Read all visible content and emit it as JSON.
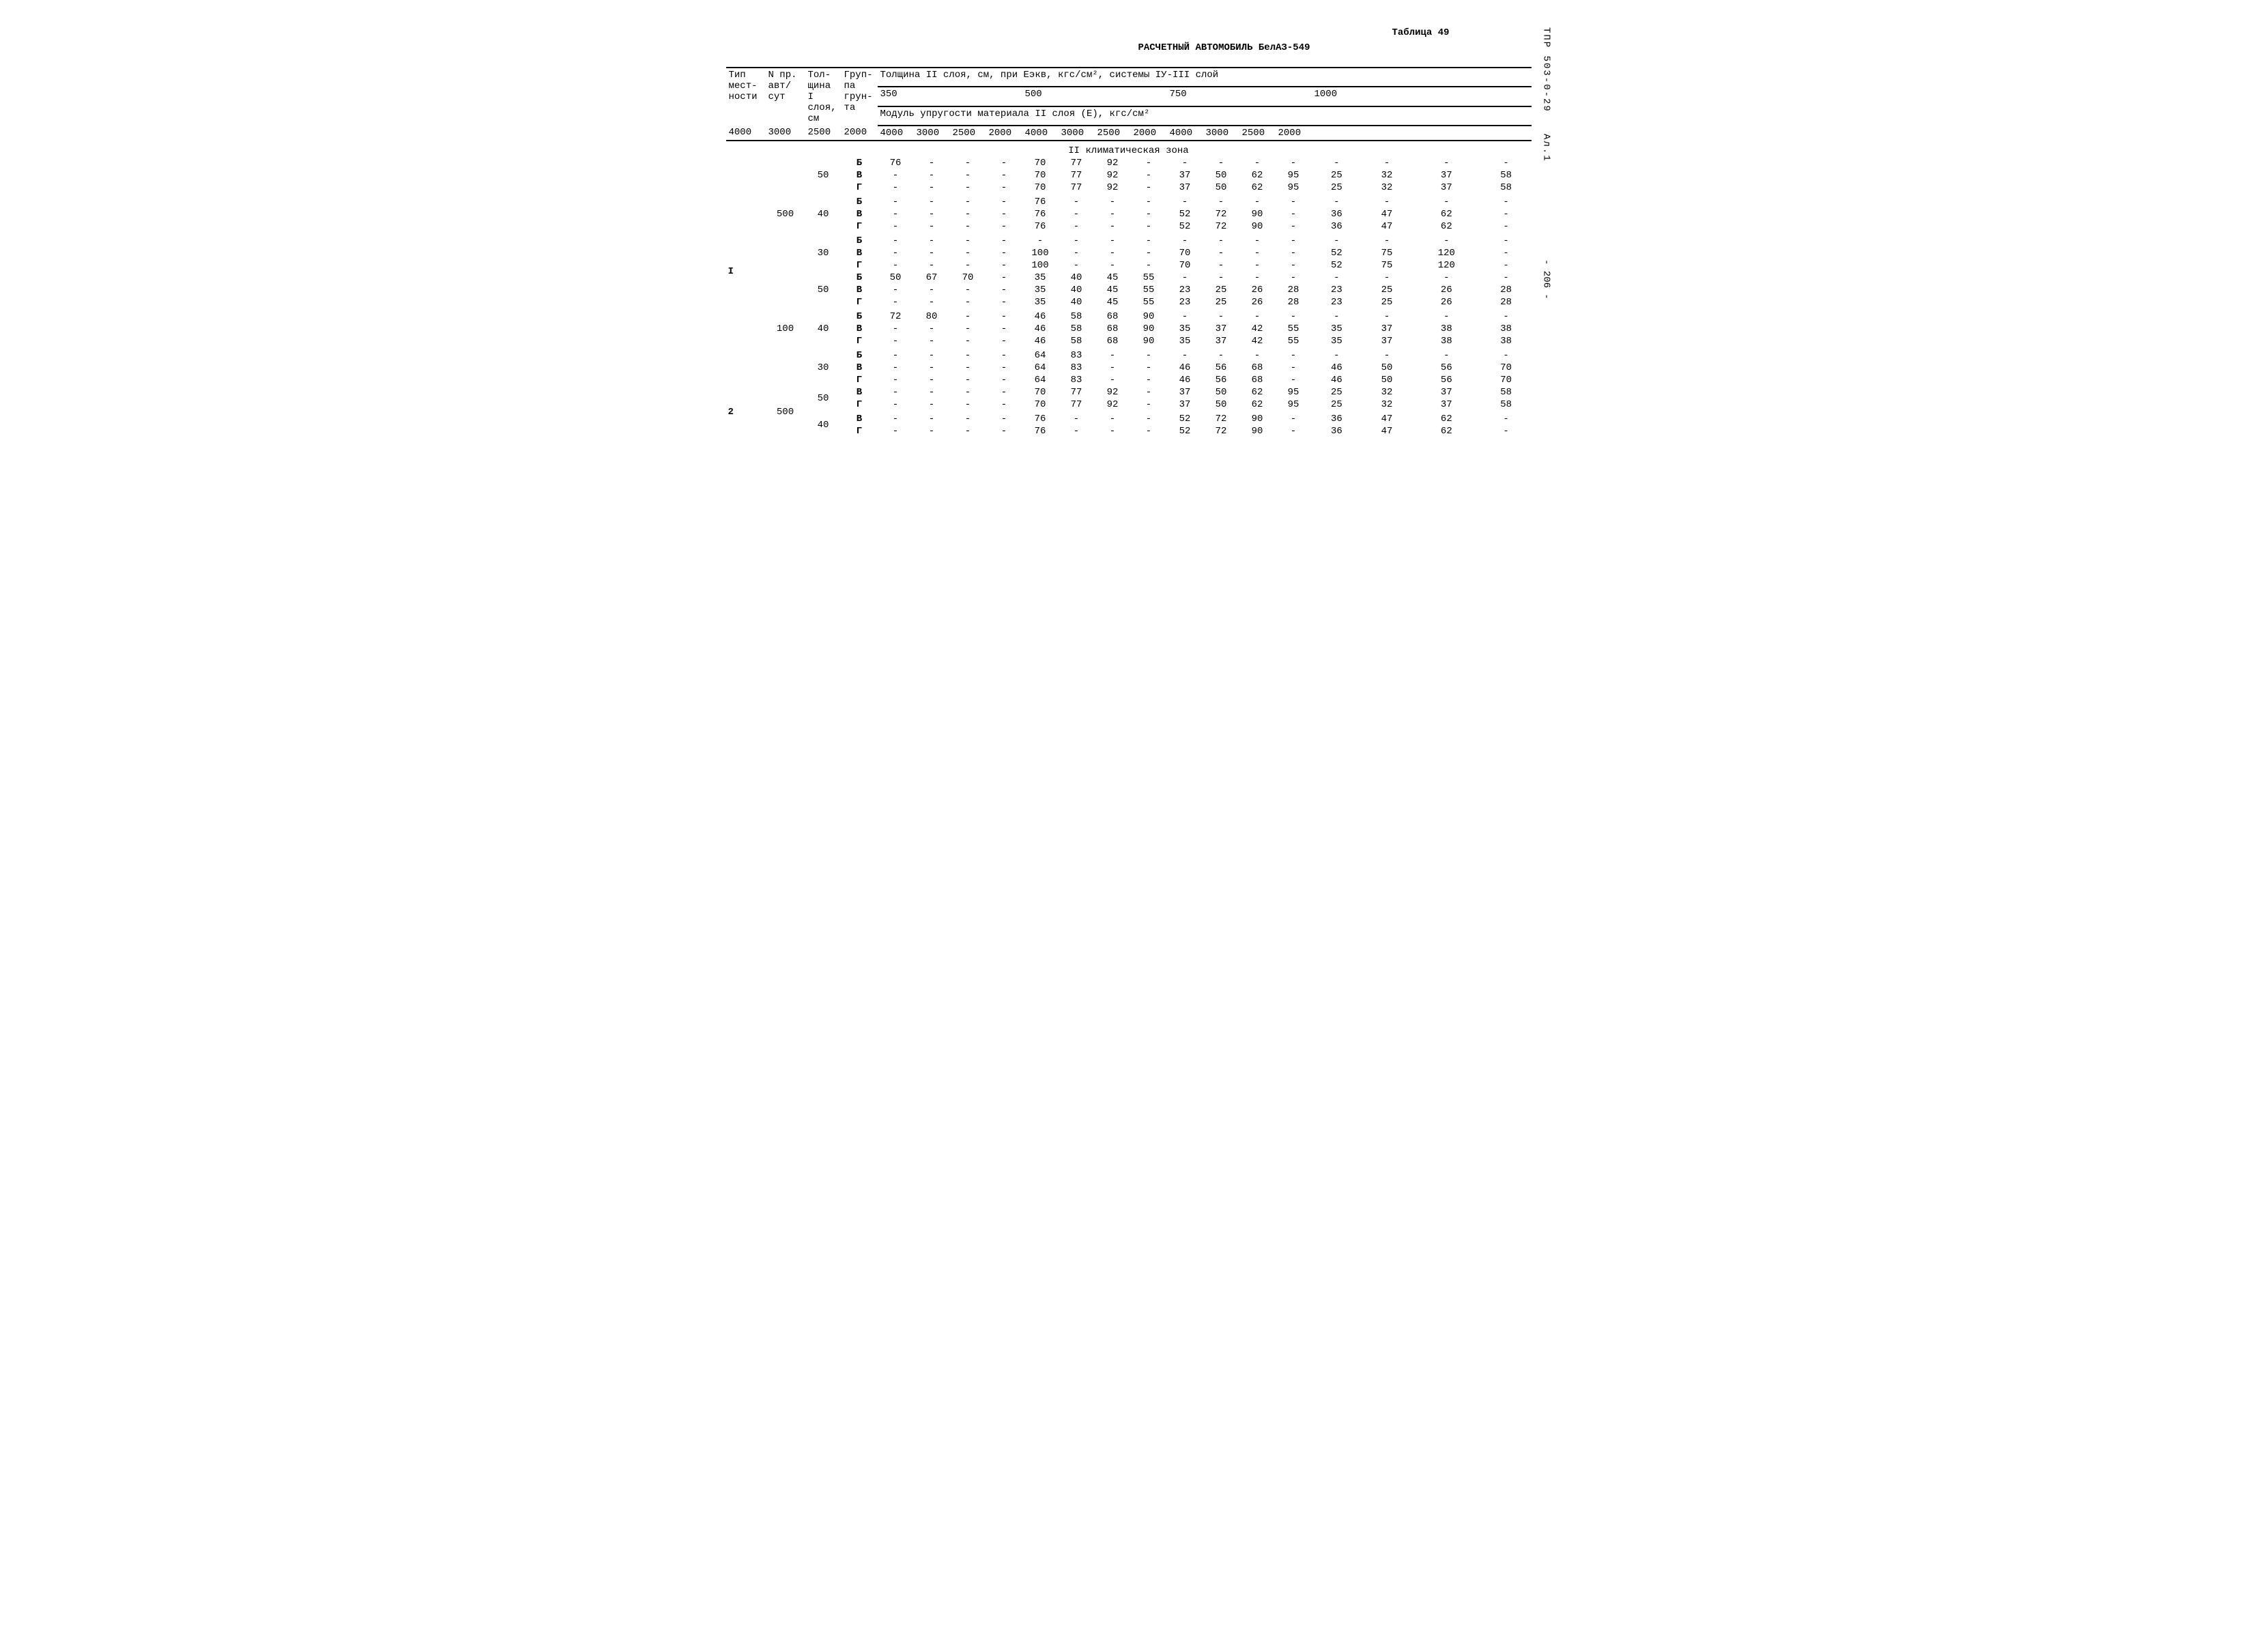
{
  "labels": {
    "table_no": "Таблица 49",
    "title": "РАСЧЕТНЫЙ АВТОМОБИЛЬ БелАЗ-549",
    "side_doc": "ТПР 503-0-29",
    "side_alt": "Ал.1",
    "side_page": "- 206 -",
    "hdr_type": "Тип\nмест-\nности",
    "hdr_avt": "N пр.\nавт/\nсут",
    "hdr_tol": "Тол-\nщина\nI\nслоя,\nсм",
    "hdr_grp": "Груп-\nпа\nгрун-\nта",
    "hdr_main": "Толщина II слоя, см, при Еэкв, кгс/см², системы IУ-III слой",
    "hdr_sub": "Модуль упругости материала II слоя (Е), кгс/см²",
    "zone": "II климатическая зона"
  },
  "eekv": [
    "350",
    "500",
    "750",
    "1000"
  ],
  "modulus": [
    "4000",
    "3000",
    "2500",
    "2000",
    "4000",
    "3000",
    "2500",
    "2000",
    "4000",
    "3000",
    "2500",
    "2000",
    "4000",
    "3000",
    "2500",
    "2000"
  ],
  "blocks": [
    {
      "type": "I",
      "avt_groups": [
        {
          "avt": "500",
          "thick_groups": [
            {
              "tol": "50",
              "rows": [
                {
                  "g": "Б",
                  "v": [
                    "76",
                    "-",
                    "-",
                    "-",
                    "70",
                    "77",
                    "92",
                    "-",
                    "-",
                    "-",
                    "-",
                    "-",
                    "-",
                    "-",
                    "-",
                    "-"
                  ]
                },
                {
                  "g": "В",
                  "v": [
                    "-",
                    "-",
                    "-",
                    "-",
                    "70",
                    "77",
                    "92",
                    "-",
                    "37",
                    "50",
                    "62",
                    "95",
                    "25",
                    "32",
                    "37",
                    "58"
                  ]
                },
                {
                  "g": "Г",
                  "v": [
                    "-",
                    "-",
                    "-",
                    "-",
                    "70",
                    "77",
                    "92",
                    "-",
                    "37",
                    "50",
                    "62",
                    "95",
                    "25",
                    "32",
                    "37",
                    "58"
                  ]
                }
              ]
            },
            {
              "tol": "40",
              "rows": [
                {
                  "g": "Б",
                  "v": [
                    "-",
                    "-",
                    "-",
                    "-",
                    "76",
                    "-",
                    "-",
                    "-",
                    "-",
                    "-",
                    "-",
                    "-",
                    "-",
                    "-",
                    "-",
                    "-"
                  ]
                },
                {
                  "g": "В",
                  "v": [
                    "-",
                    "-",
                    "-",
                    "-",
                    "76",
                    "-",
                    "-",
                    "-",
                    "52",
                    "72",
                    "90",
                    "-",
                    "36",
                    "47",
                    "62",
                    "-"
                  ]
                },
                {
                  "g": "Г",
                  "v": [
                    "-",
                    "-",
                    "-",
                    "-",
                    "76",
                    "-",
                    "-",
                    "-",
                    "52",
                    "72",
                    "90",
                    "-",
                    "36",
                    "47",
                    "62",
                    "-"
                  ]
                }
              ]
            },
            {
              "tol": "30",
              "rows": [
                {
                  "g": "Б",
                  "v": [
                    "-",
                    "-",
                    "-",
                    "-",
                    "-",
                    "-",
                    "-",
                    "-",
                    "-",
                    "-",
                    "-",
                    "-",
                    "-",
                    "-",
                    "-",
                    "-"
                  ]
                },
                {
                  "g": "В",
                  "v": [
                    "-",
                    "-",
                    "-",
                    "-",
                    "100",
                    "-",
                    "-",
                    "-",
                    "70",
                    "-",
                    "-",
                    "-",
                    "52",
                    "75",
                    "120",
                    "-"
                  ]
                },
                {
                  "g": "Г",
                  "v": [
                    "-",
                    "-",
                    "-",
                    "-",
                    "100",
                    "-",
                    "-",
                    "-",
                    "70",
                    "-",
                    "-",
                    "-",
                    "52",
                    "75",
                    "120",
                    "-"
                  ]
                }
              ]
            }
          ]
        },
        {
          "avt": "100",
          "thick_groups": [
            {
              "tol": "50",
              "rows": [
                {
                  "g": "Б",
                  "v": [
                    "50",
                    "67",
                    "70",
                    "-",
                    "35",
                    "40",
                    "45",
                    "55",
                    "-",
                    "-",
                    "-",
                    "-",
                    "-",
                    "-",
                    "-",
                    "-"
                  ]
                },
                {
                  "g": "В",
                  "v": [
                    "-",
                    "-",
                    "-",
                    "-",
                    "35",
                    "40",
                    "45",
                    "55",
                    "23",
                    "25",
                    "26",
                    "28",
                    "23",
                    "25",
                    "26",
                    "28"
                  ]
                },
                {
                  "g": "Г",
                  "v": [
                    "-",
                    "-",
                    "-",
                    "-",
                    "35",
                    "40",
                    "45",
                    "55",
                    "23",
                    "25",
                    "26",
                    "28",
                    "23",
                    "25",
                    "26",
                    "28"
                  ]
                }
              ]
            },
            {
              "tol": "40",
              "rows": [
                {
                  "g": "Б",
                  "v": [
                    "72",
                    "80",
                    "-",
                    "-",
                    "46",
                    "58",
                    "68",
                    "90",
                    "-",
                    "-",
                    "-",
                    "-",
                    "-",
                    "-",
                    "-",
                    "-"
                  ]
                },
                {
                  "g": "В",
                  "v": [
                    "-",
                    "-",
                    "-",
                    "-",
                    "46",
                    "58",
                    "68",
                    "90",
                    "35",
                    "37",
                    "42",
                    "55",
                    "35",
                    "37",
                    "38",
                    "38"
                  ]
                },
                {
                  "g": "Г",
                  "v": [
                    "-",
                    "-",
                    "-",
                    "-",
                    "46",
                    "58",
                    "68",
                    "90",
                    "35",
                    "37",
                    "42",
                    "55",
                    "35",
                    "37",
                    "38",
                    "38"
                  ]
                }
              ]
            },
            {
              "tol": "30",
              "rows": [
                {
                  "g": "Б",
                  "v": [
                    "-",
                    "-",
                    "-",
                    "-",
                    "64",
                    "83",
                    "-",
                    "-",
                    "-",
                    "-",
                    "-",
                    "-",
                    "-",
                    "-",
                    "-",
                    "-"
                  ]
                },
                {
                  "g": "В",
                  "v": [
                    "-",
                    "-",
                    "-",
                    "-",
                    "64",
                    "83",
                    "-",
                    "-",
                    "46",
                    "56",
                    "68",
                    "-",
                    "46",
                    "50",
                    "56",
                    "70"
                  ]
                },
                {
                  "g": "Г",
                  "v": [
                    "-",
                    "-",
                    "-",
                    "-",
                    "64",
                    "83",
                    "-",
                    "-",
                    "46",
                    "56",
                    "68",
                    "-",
                    "46",
                    "50",
                    "56",
                    "70"
                  ]
                }
              ]
            }
          ]
        }
      ]
    },
    {
      "type": "2",
      "avt_groups": [
        {
          "avt": "500",
          "thick_groups": [
            {
              "tol": "50",
              "rows": [
                {
                  "g": "В",
                  "v": [
                    "-",
                    "-",
                    "-",
                    "-",
                    "70",
                    "77",
                    "92",
                    "-",
                    "37",
                    "50",
                    "62",
                    "95",
                    "25",
                    "32",
                    "37",
                    "58"
                  ]
                },
                {
                  "g": "Г",
                  "v": [
                    "-",
                    "-",
                    "-",
                    "-",
                    "70",
                    "77",
                    "92",
                    "-",
                    "37",
                    "50",
                    "62",
                    "95",
                    "25",
                    "32",
                    "37",
                    "58"
                  ]
                }
              ]
            },
            {
              "tol": "40",
              "rows": [
                {
                  "g": "В",
                  "v": [
                    "-",
                    "-",
                    "-",
                    "-",
                    "76",
                    "-",
                    "-",
                    "-",
                    "52",
                    "72",
                    "90",
                    "-",
                    "36",
                    "47",
                    "62",
                    "-"
                  ]
                },
                {
                  "g": "Г",
                  "v": [
                    "-",
                    "-",
                    "-",
                    "-",
                    "76",
                    "-",
                    "-",
                    "-",
                    "52",
                    "72",
                    "90",
                    "-",
                    "36",
                    "47",
                    "62",
                    "-"
                  ]
                }
              ]
            }
          ]
        }
      ]
    }
  ]
}
